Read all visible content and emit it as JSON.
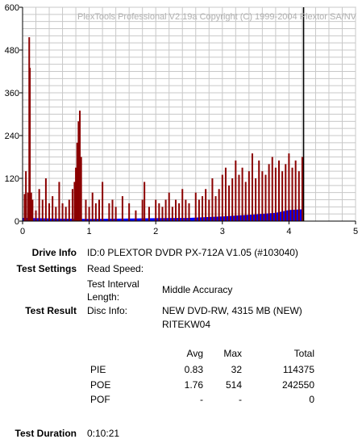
{
  "chart_data": {
    "type": "bar",
    "title": "PlexTools Professional V2.19a Copyright (C) 1999-2004 Plextor SA/NV",
    "x_ticks": [
      "0",
      "1",
      "2",
      "3",
      "4",
      "5"
    ],
    "y_ticks": [
      "0",
      "120",
      "240",
      "360",
      "480",
      "600"
    ],
    "xlim": [
      0,
      5
    ],
    "ylim": [
      0,
      600
    ],
    "grid": true,
    "end_marker_x": 4.22,
    "colors": {
      "poe": "#8b0000",
      "pie": "#0000ff",
      "end_marker": "#000000",
      "grid": "#c8c8c8",
      "axes": "#000000"
    },
    "series": [
      {
        "key": "poe",
        "points": [
          [
            0.03,
            76
          ],
          [
            0.05,
            140
          ],
          [
            0.08,
            80
          ],
          [
            0.1,
            516
          ],
          [
            0.11,
            430
          ],
          [
            0.13,
            80
          ],
          [
            0.15,
            60
          ],
          [
            0.2,
            30
          ],
          [
            0.25,
            90
          ],
          [
            0.3,
            60
          ],
          [
            0.35,
            120
          ],
          [
            0.4,
            50
          ],
          [
            0.45,
            70
          ],
          [
            0.5,
            40
          ],
          [
            0.55,
            110
          ],
          [
            0.6,
            50
          ],
          [
            0.65,
            40
          ],
          [
            0.7,
            60
          ],
          [
            0.75,
            90
          ],
          [
            0.78,
            110
          ],
          [
            0.8,
            150
          ],
          [
            0.82,
            220
          ],
          [
            0.84,
            280
          ],
          [
            0.86,
            310
          ],
          [
            0.88,
            180
          ],
          [
            0.95,
            60
          ],
          [
            1.0,
            40
          ],
          [
            1.05,
            80
          ],
          [
            1.1,
            50
          ],
          [
            1.15,
            60
          ],
          [
            1.2,
            110
          ],
          [
            1.3,
            50
          ],
          [
            1.35,
            60
          ],
          [
            1.4,
            40
          ],
          [
            1.5,
            70
          ],
          [
            1.6,
            50
          ],
          [
            1.7,
            30
          ],
          [
            1.8,
            60
          ],
          [
            1.83,
            110
          ],
          [
            1.9,
            40
          ],
          [
            2.0,
            60
          ],
          [
            2.05,
            50
          ],
          [
            2.1,
            40
          ],
          [
            2.15,
            60
          ],
          [
            2.2,
            80
          ],
          [
            2.25,
            40
          ],
          [
            2.3,
            60
          ],
          [
            2.35,
            50
          ],
          [
            2.4,
            90
          ],
          [
            2.45,
            60
          ],
          [
            2.5,
            50
          ],
          [
            2.6,
            80
          ],
          [
            2.65,
            60
          ],
          [
            2.7,
            70
          ],
          [
            2.75,
            90
          ],
          [
            2.8,
            60
          ],
          [
            2.85,
            120
          ],
          [
            2.9,
            70
          ],
          [
            2.95,
            90
          ],
          [
            3.0,
            130
          ],
          [
            3.05,
            150
          ],
          [
            3.1,
            100
          ],
          [
            3.15,
            120
          ],
          [
            3.2,
            170
          ],
          [
            3.25,
            130
          ],
          [
            3.3,
            150
          ],
          [
            3.35,
            110
          ],
          [
            3.4,
            140
          ],
          [
            3.45,
            190
          ],
          [
            3.5,
            120
          ],
          [
            3.55,
            170
          ],
          [
            3.6,
            140
          ],
          [
            3.65,
            130
          ],
          [
            3.7,
            160
          ],
          [
            3.75,
            180
          ],
          [
            3.8,
            150
          ],
          [
            3.85,
            170
          ],
          [
            3.9,
            140
          ],
          [
            3.95,
            160
          ],
          [
            4.0,
            190
          ],
          [
            4.05,
            150
          ],
          [
            4.1,
            170
          ],
          [
            4.15,
            140
          ],
          [
            4.2,
            180
          ]
        ]
      },
      {
        "key": "pie",
        "points": [
          [
            0.0,
            8
          ],
          [
            0.5,
            6
          ],
          [
            1.0,
            5
          ],
          [
            1.5,
            6
          ],
          [
            2.0,
            7
          ],
          [
            2.5,
            8
          ],
          [
            3.0,
            12
          ],
          [
            3.5,
            18
          ],
          [
            3.8,
            22
          ],
          [
            4.0,
            30
          ],
          [
            4.2,
            32
          ]
        ]
      }
    ]
  },
  "info": {
    "drive_info_label": "Drive Info",
    "drive_info_value": "ID:0 PLEXTOR DVDR PX-712A V1.05 (#103040)",
    "test_settings_label": "Test Settings",
    "read_speed_label": "Read Speed:",
    "read_speed_value": "",
    "interval_label_line1": "Test Interval",
    "interval_label_line2": "Length:",
    "interval_value": "Middle Accuracy",
    "test_result_label": "Test Result",
    "disc_info_label": "Disc Info:",
    "disc_info_line1": "NEW DVD-RW, 4315 MB (NEW)",
    "disc_info_line2": "RITEKW04"
  },
  "results": {
    "headers": {
      "avg": "Avg",
      "max": "Max",
      "total": "Total"
    },
    "rows": [
      {
        "name": "PIE",
        "avg": "0.83",
        "max": "32",
        "total": "114375"
      },
      {
        "name": "POE",
        "avg": "1.76",
        "max": "514",
        "total": "242550"
      },
      {
        "name": "POF",
        "avg": "-",
        "max": "-",
        "total": "0"
      }
    ]
  },
  "duration": {
    "label": "Test Duration",
    "value": "0:10:21"
  }
}
